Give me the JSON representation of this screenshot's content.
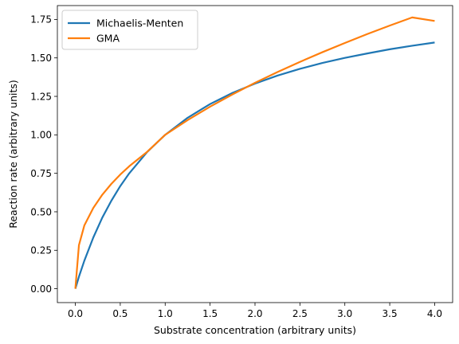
{
  "chart_data": {
    "type": "line",
    "title": "",
    "xlabel": "Substrate concentration (arbitrary units)",
    "ylabel": "Reaction rate (arbitrary units)",
    "xlim": [
      -0.2,
      4.2
    ],
    "ylim": [
      -0.09,
      1.84
    ],
    "xticks": [
      0.0,
      0.5,
      1.0,
      1.5,
      2.0,
      2.5,
      3.0,
      3.5,
      4.0
    ],
    "xtick_labels": [
      "0.0",
      "0.5",
      "1.0",
      "1.5",
      "2.0",
      "2.5",
      "3.0",
      "3.5",
      "4.0"
    ],
    "yticks": [
      0.0,
      0.25,
      0.5,
      0.75,
      1.0,
      1.25,
      1.5,
      1.75
    ],
    "ytick_labels": [
      "0.00",
      "0.25",
      "0.50",
      "0.75",
      "1.00",
      "1.25",
      "1.50",
      "1.75"
    ],
    "grid": false,
    "legend_position": "top-left",
    "x": [
      0.0,
      0.04,
      0.1,
      0.2,
      0.3,
      0.4,
      0.5,
      0.6,
      0.8,
      1.0,
      1.25,
      1.5,
      1.75,
      2.0,
      2.25,
      2.5,
      2.75,
      3.0,
      3.25,
      3.5,
      3.75,
      4.0
    ],
    "series": [
      {
        "name": "Michaelis-Menten",
        "color": "#1f77b4",
        "values": [
          0.0,
          0.078,
          0.182,
          0.333,
          0.462,
          0.571,
          0.667,
          0.75,
          0.889,
          1.0,
          1.111,
          1.2,
          1.273,
          1.333,
          1.385,
          1.429,
          1.467,
          1.5,
          1.529,
          1.556,
          1.579,
          1.6
        ]
      },
      {
        "name": "GMA",
        "color": "#ff7f0e",
        "values": [
          0.0,
          0.283,
          0.411,
          0.525,
          0.611,
          0.681,
          0.742,
          0.796,
          0.89,
          1.0,
          1.096,
          1.183,
          1.263,
          1.338,
          1.408,
          1.474,
          1.537,
          1.597,
          1.655,
          1.71,
          1.763,
          1.74
        ]
      }
    ]
  }
}
